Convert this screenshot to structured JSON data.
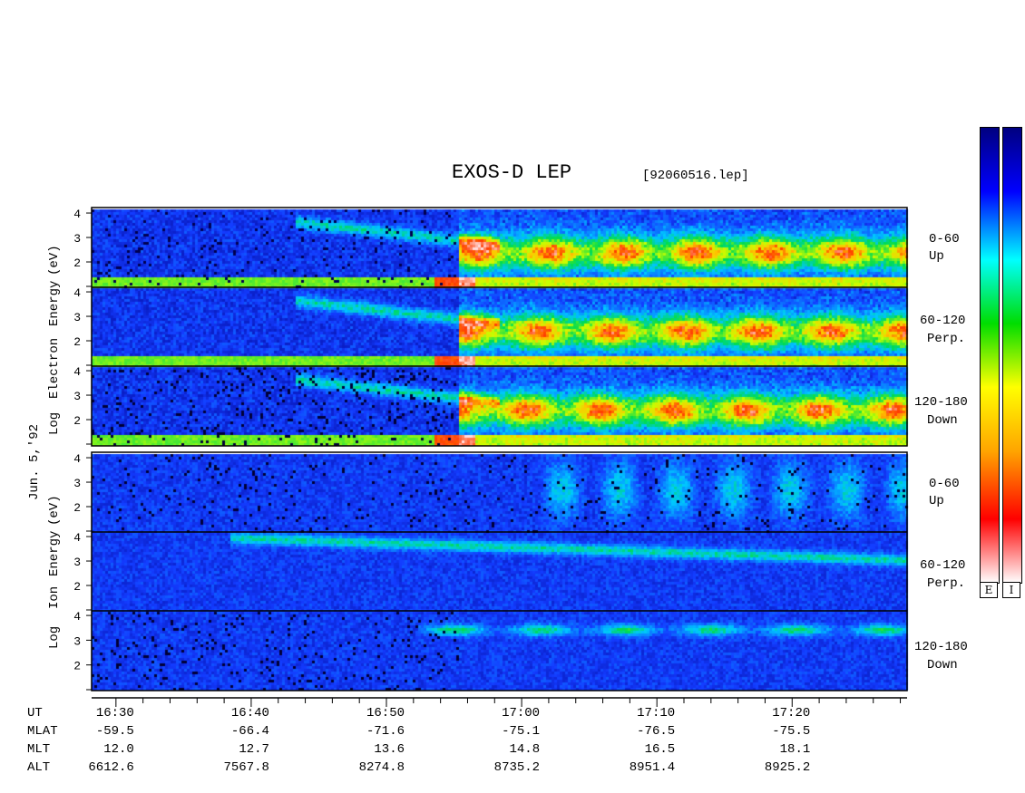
{
  "header": {
    "title": "EXOS-D LEP",
    "filename": "[92060516.lep]"
  },
  "side_labels": {
    "date": "Jun. 5,'92",
    "electron": [
      "Log",
      "Electron",
      "Energy",
      "(eV)"
    ],
    "ion": [
      "Log",
      "Ion",
      "Energy",
      "(eV)"
    ]
  },
  "colorbar": {
    "labels": [
      "E",
      "I"
    ],
    "colors": [
      "#ffffff",
      "#ff0000",
      "#ffa500",
      "#ffff00",
      "#00dd00",
      "#00ffff",
      "#0000ff",
      "#000080"
    ]
  },
  "footer": {
    "rows": [
      {
        "label": "UT",
        "values": [
          "16:30",
          "16:40",
          "16:50",
          "17:00",
          "17:10",
          "17:20"
        ]
      },
      {
        "label": "MLAT",
        "values": [
          "-59.5",
          "-66.4",
          "-71.6",
          "-75.1",
          "-76.5",
          "-75.5"
        ]
      },
      {
        "label": "MLT",
        "values": [
          "12.0",
          "12.7",
          "13.6",
          "14.8",
          "16.5",
          "18.1"
        ]
      },
      {
        "label": "ALT",
        "values": [
          "6612.6",
          "7567.8",
          "8274.8",
          "8735.2",
          "8951.4",
          "8925.2"
        ]
      }
    ]
  },
  "chart_data": {
    "type": "heatmap",
    "title": "EXOS-D LEP",
    "x": [
      "16:30",
      "16:40",
      "16:50",
      "17:00",
      "17:10",
      "17:20"
    ],
    "xlabel": "UT",
    "ylabel": "Log Energy (eV)",
    "y_ticks": [
      2,
      3,
      4
    ],
    "species": [
      {
        "name": "Electron",
        "panels": [
          {
            "pitch": "0-60",
            "direction": "Up"
          },
          {
            "pitch": "60-120",
            "direction": "Perp."
          },
          {
            "pitch": "120-180",
            "direction": "Down"
          }
        ]
      },
      {
        "name": "Ion",
        "panels": [
          {
            "pitch": "0-60",
            "direction": "Up"
          },
          {
            "pitch": "60-120",
            "direction": "Perp."
          },
          {
            "pitch": "120-180",
            "direction": "Down"
          }
        ]
      }
    ],
    "colorbar": [
      "E",
      "I"
    ]
  }
}
